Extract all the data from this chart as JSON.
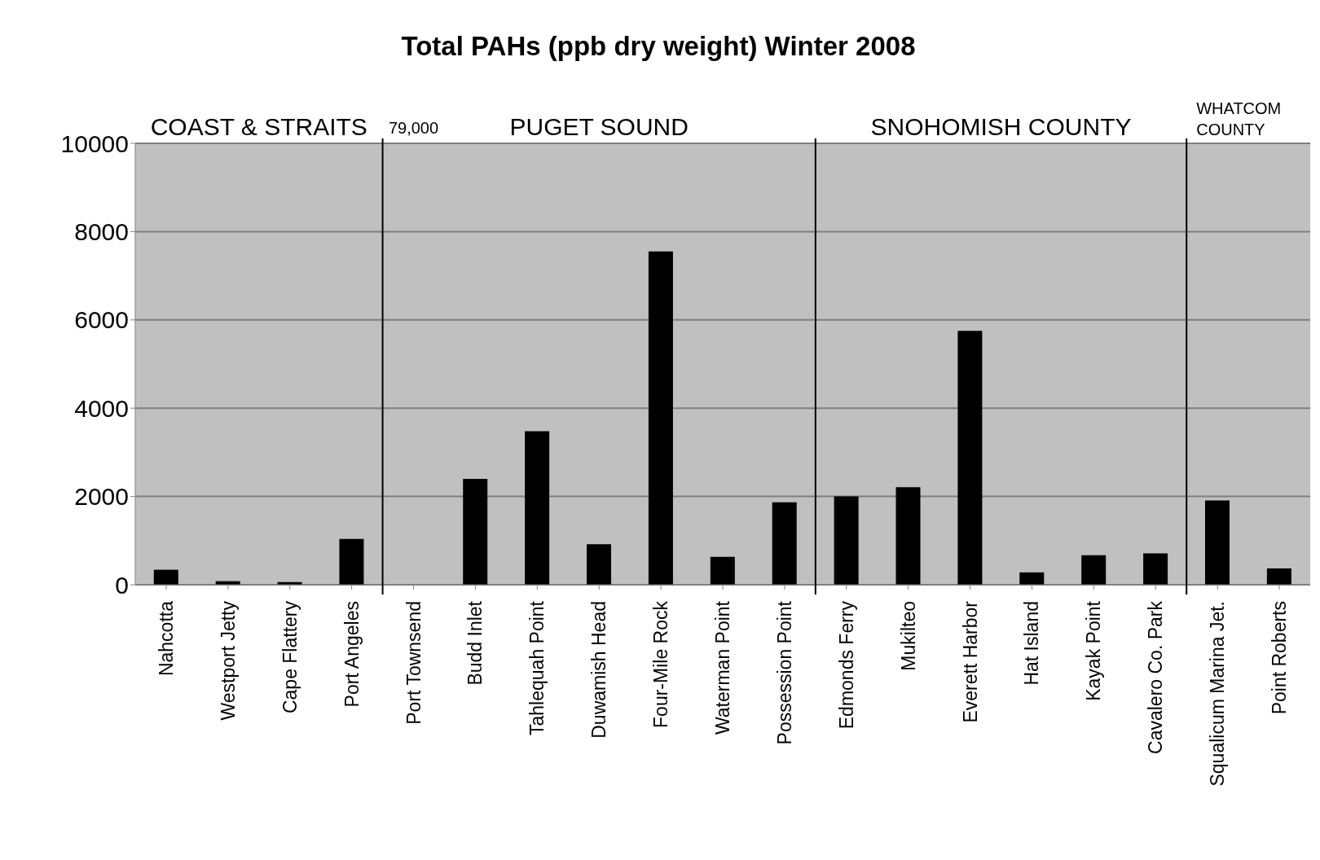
{
  "chart_data": {
    "type": "bar",
    "title": "Total PAHs (ppb dry weight) Winter 2008",
    "categories": [
      "Nahcotta",
      "Westport Jetty",
      "Cape Flattery",
      "Port Angeles",
      "Port Townsend",
      "Budd Inlet",
      "Tahlequah Point",
      "Duwamish Head",
      "Four-Mile Rock",
      "Waterman Point",
      "Possession Point",
      "Edmonds Ferry",
      "Mukilteo",
      "Everett Harbor",
      "Hat Island",
      "Kayak Point",
      "Cavalero Co. Park",
      "Squalicum Marina Jet.",
      "Point Roberts"
    ],
    "series": [
      {
        "color": "#000000",
        "values": [
          340,
          80,
          60,
          1040,
          null,
          2400,
          3480,
          920,
          7550,
          630,
          1870,
          2000,
          2210,
          5750,
          280,
          670,
          710,
          1910,
          370
        ],
        "value_labels": [
          null,
          null,
          null,
          null,
          "79,000",
          null,
          null,
          null,
          null,
          null,
          null,
          null,
          null,
          null,
          null,
          null,
          null,
          null,
          null
        ]
      }
    ],
    "ylim": [
      0,
      10000
    ],
    "yticks": [
      0,
      2000,
      4000,
      6000,
      8000,
      10000
    ],
    "grid": "y",
    "bands": [
      {
        "axis": "x",
        "from": "Nahcotta",
        "to": "Port Angeles",
        "label": "COAST & STRAITS",
        "color": "#c0c0c0"
      },
      {
        "axis": "x",
        "from": "Port Townsend",
        "to": "Possession Point",
        "label": "PUGET SOUND",
        "color": "#c0c0c0"
      },
      {
        "axis": "x",
        "from": "Edmonds Ferry",
        "to": "Cavalero Co. Park",
        "label": "SNOHOMISH COUNTY",
        "color": "#c0c0c0"
      },
      {
        "axis": "x",
        "from": "Squalicum Marina Jet.",
        "to": "Point Roberts",
        "label": "WHATCOM COUNTY",
        "color": "#c0c0c0"
      }
    ]
  }
}
